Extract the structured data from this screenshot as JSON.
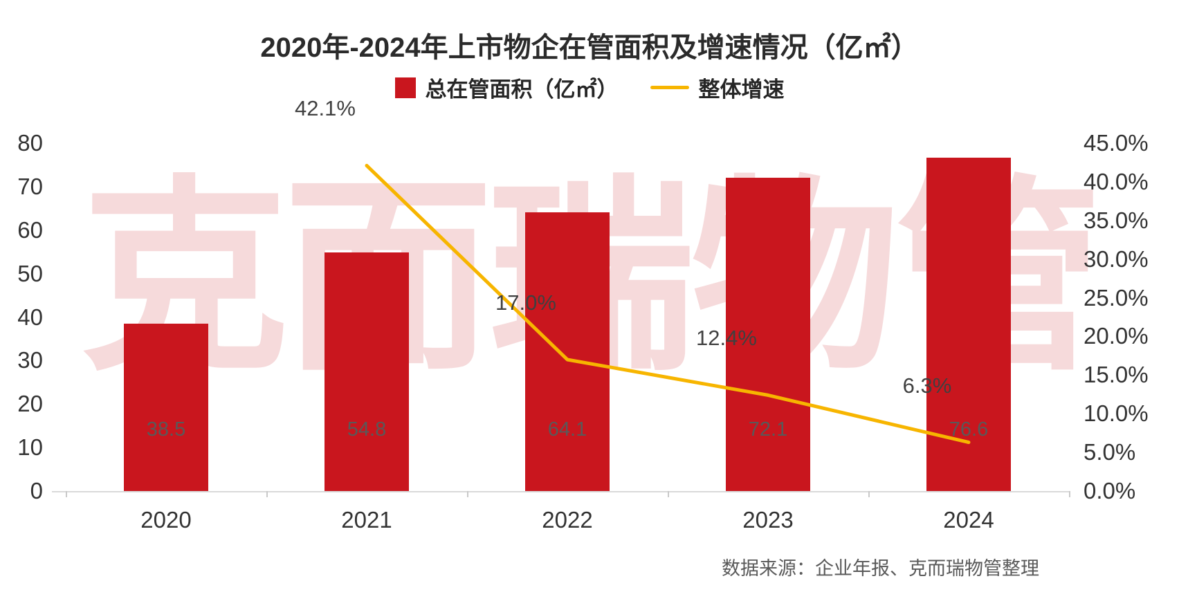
{
  "title": "2020年-2024年上市物企在管面积及增速情况（亿㎡）",
  "legend": [
    {
      "label": "总在管面积（亿㎡）",
      "type": "bar",
      "color": "#c9161e"
    },
    {
      "label": "整体增速",
      "type": "line",
      "color": "#f7b500"
    }
  ],
  "watermark": "克而瑞物管",
  "source": "数据来源：企业年报、克而瑞物管整理",
  "colors": {
    "bar": "#c9161e",
    "line": "#f7b500",
    "axis_text": "#333333",
    "bar_label_text": "#595959",
    "source_text": "#595959"
  },
  "chart_data": {
    "type": "bar",
    "subtype": "bar+line combo, dual axis",
    "title": "2020年-2024年上市物企在管面积及增速情况（亿㎡）",
    "categories": [
      "2020",
      "2021",
      "2022",
      "2023",
      "2024"
    ],
    "series": [
      {
        "name": "总在管面积（亿㎡）",
        "type": "bar",
        "axis": "left",
        "color": "#c9161e",
        "values": [
          38.5,
          54.8,
          64.1,
          72.1,
          76.6
        ]
      },
      {
        "name": "整体增速",
        "type": "line",
        "axis": "right",
        "color": "#f7b500",
        "unit": "%",
        "values": [
          null,
          42.1,
          17.0,
          12.4,
          6.3
        ]
      }
    ],
    "bar_labels": [
      "38.5",
      "54.8",
      "64.1",
      "72.1",
      "76.6"
    ],
    "line_labels": [
      null,
      "42.1%",
      "17.0%",
      "12.4%",
      "6.3%"
    ],
    "left_axis": {
      "min": 0,
      "max": 80,
      "step": 10,
      "ticks": [
        "0",
        "10",
        "20",
        "30",
        "40",
        "50",
        "60",
        "70",
        "80"
      ]
    },
    "right_axis": {
      "min": 0,
      "max": 45,
      "step": 5,
      "ticks": [
        "0.0%",
        "5.0%",
        "10.0%",
        "15.0%",
        "20.0%",
        "25.0%",
        "30.0%",
        "35.0%",
        "40.0%",
        "45.0%"
      ]
    },
    "grid": false,
    "legend_position": "top-center"
  }
}
